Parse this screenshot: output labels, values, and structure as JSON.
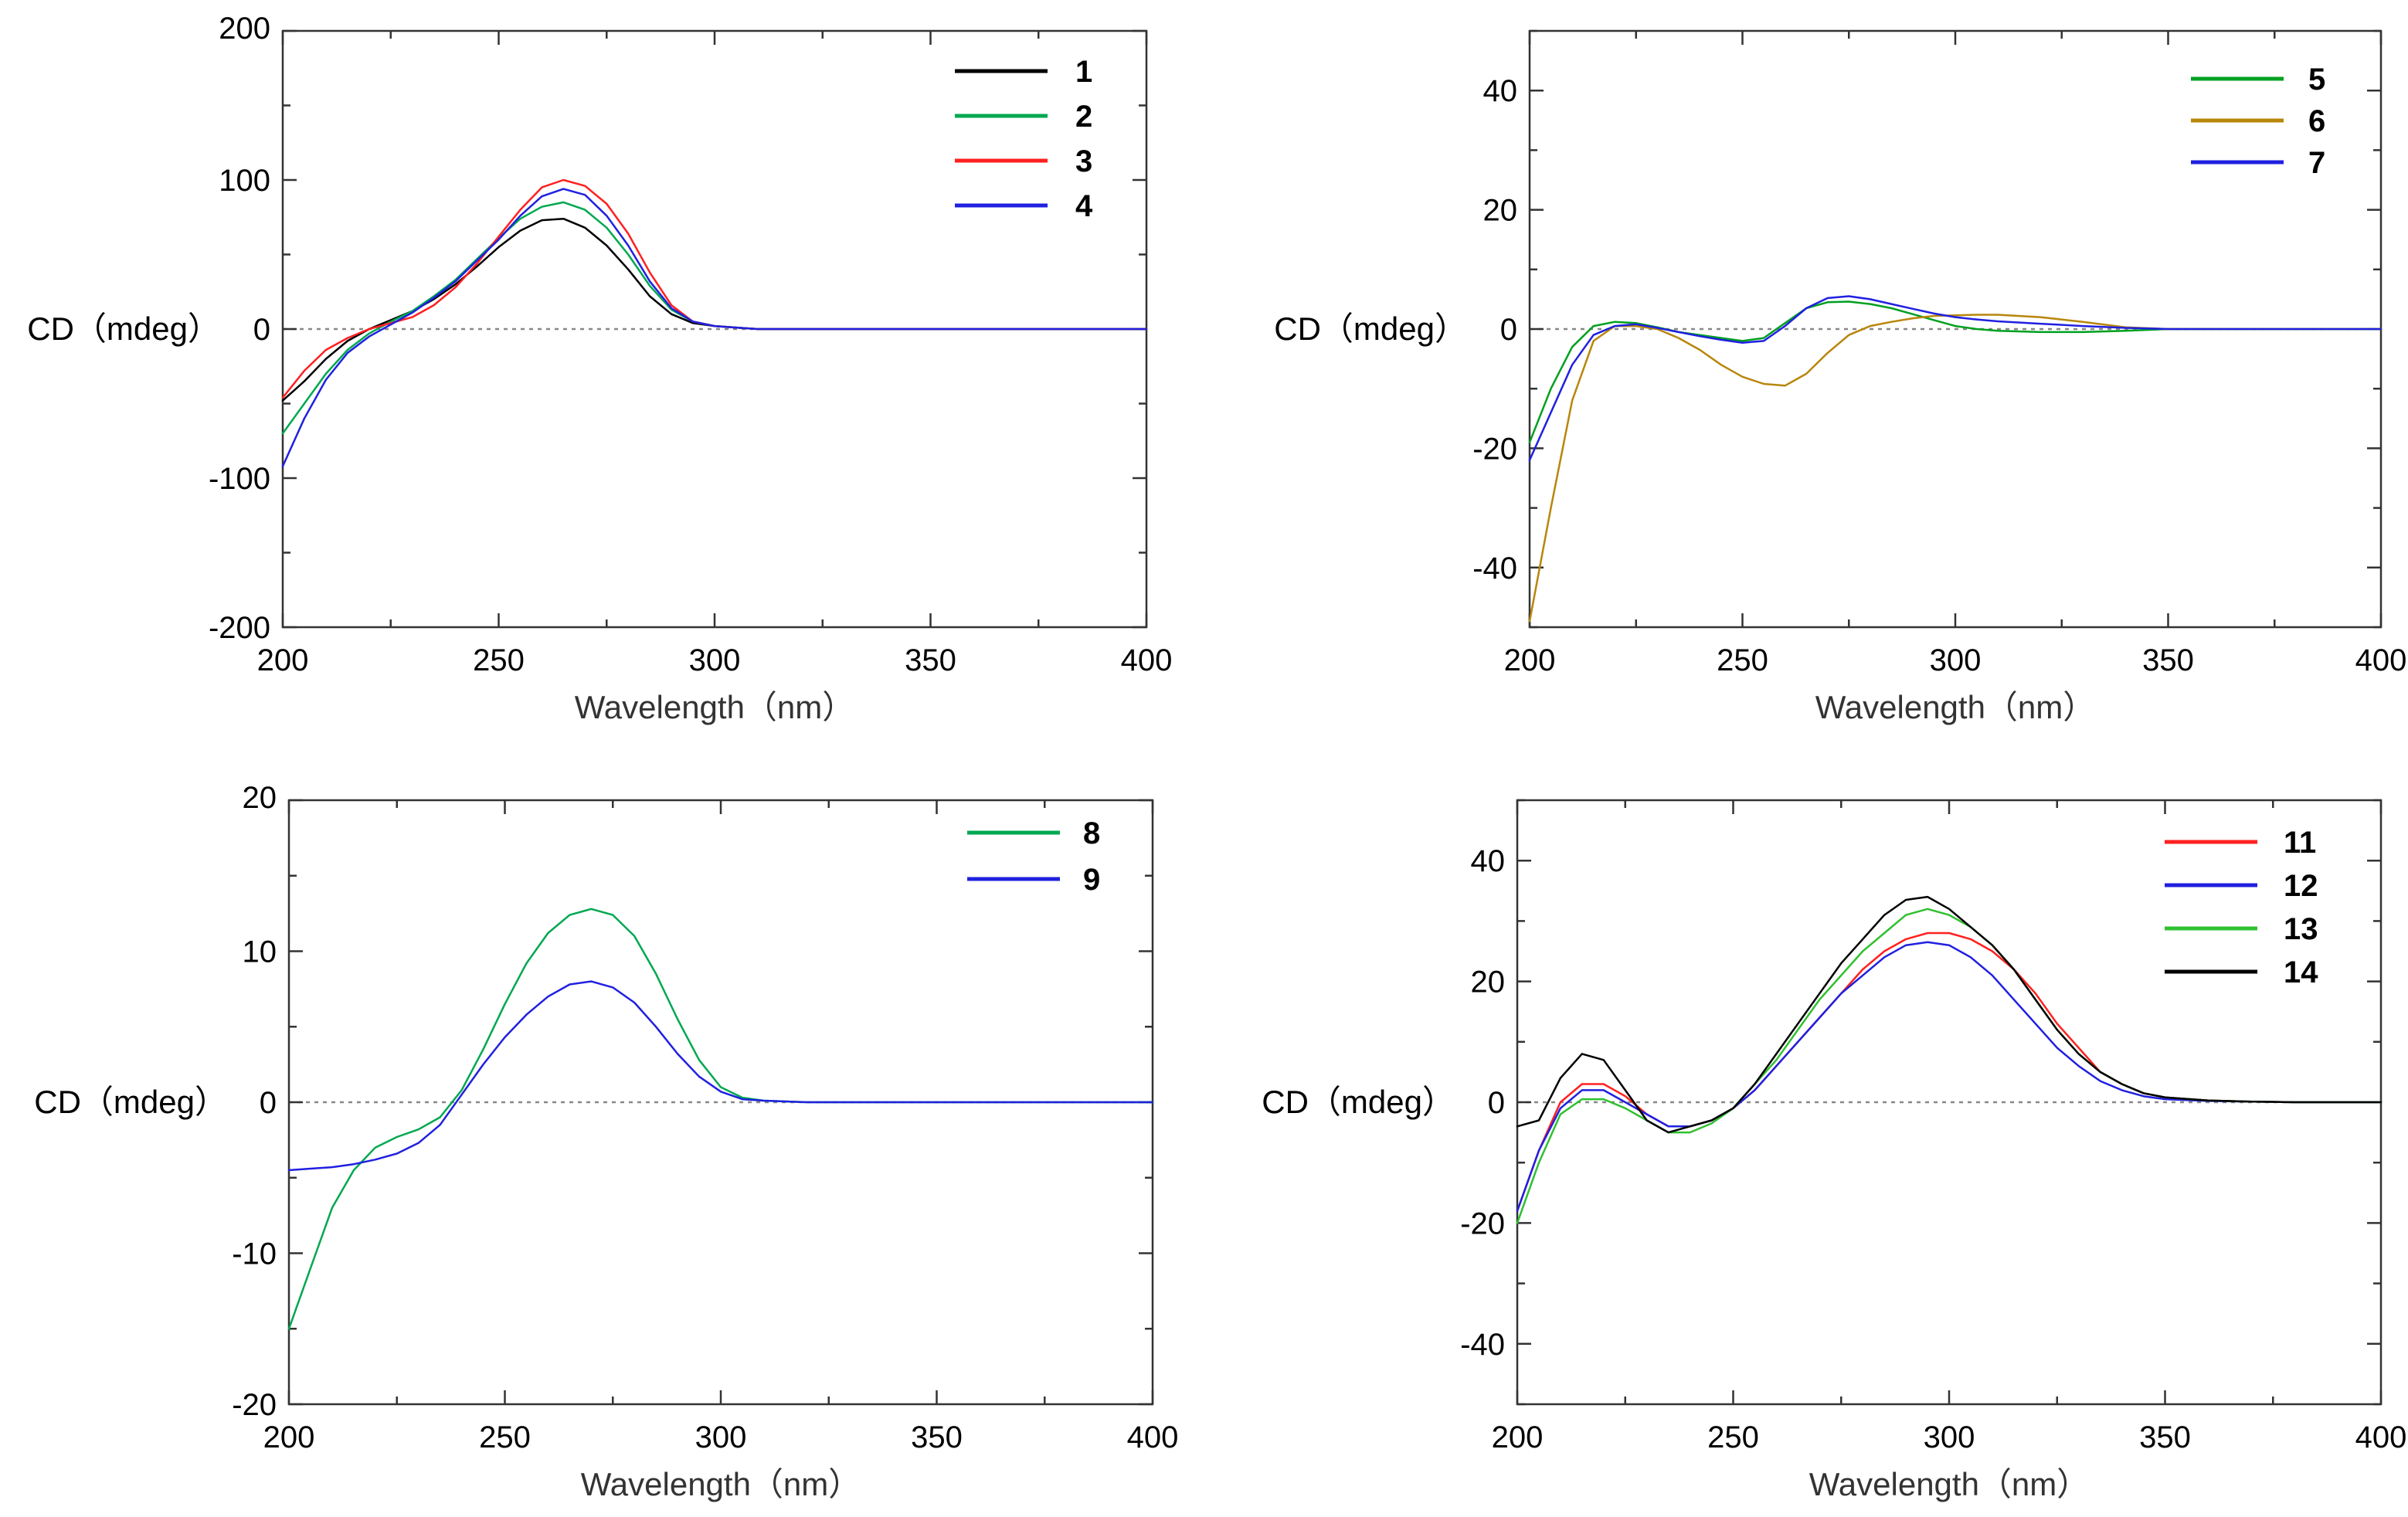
{
  "chart_data": [
    {
      "type": "line",
      "panel": "top-left",
      "xlabel": "Wavelength（nm）",
      "ylabel": "CD（mdeg）",
      "xlim": [
        200,
        400
      ],
      "ylim": [
        -200,
        200
      ],
      "xticks": [
        200,
        250,
        300,
        350,
        400
      ],
      "yticks": [
        -200,
        -100,
        0,
        100,
        200
      ],
      "zero_line": true,
      "legend_position": "top-right",
      "series": [
        {
          "name": "1",
          "color": "#000000",
          "x": [
            200,
            205,
            210,
            215,
            220,
            225,
            230,
            235,
            240,
            245,
            250,
            255,
            260,
            265,
            270,
            275,
            280,
            285,
            290,
            295,
            300,
            305,
            310,
            320,
            330,
            340,
            350,
            360,
            370,
            380,
            390,
            400
          ],
          "y": [
            -48,
            -35,
            -20,
            -8,
            0,
            6,
            12,
            20,
            30,
            42,
            55,
            66,
            73,
            74,
            68,
            56,
            40,
            22,
            10,
            4,
            2,
            1,
            0,
            0,
            0,
            0,
            0,
            0,
            0,
            0,
            0,
            0
          ]
        },
        {
          "name": "2",
          "color": "#00a850",
          "x": [
            200,
            205,
            210,
            215,
            220,
            225,
            230,
            235,
            240,
            245,
            250,
            255,
            260,
            265,
            270,
            275,
            280,
            285,
            290,
            295,
            300,
            305,
            310,
            320,
            330,
            340,
            350,
            360,
            370,
            380,
            390,
            400
          ],
          "y": [
            -70,
            -50,
            -30,
            -14,
            -3,
            5,
            12,
            22,
            33,
            47,
            61,
            74,
            82,
            85,
            80,
            68,
            50,
            29,
            13,
            5,
            2,
            1,
            0,
            0,
            0,
            0,
            0,
            0,
            0,
            0,
            0,
            0
          ]
        },
        {
          "name": "3",
          "color": "#ff2020",
          "x": [
            200,
            205,
            210,
            215,
            220,
            225,
            230,
            235,
            240,
            245,
            250,
            255,
            260,
            265,
            270,
            275,
            280,
            285,
            290,
            295,
            300,
            305,
            310,
            320,
            330,
            340,
            350,
            360,
            370,
            380,
            390,
            400
          ],
          "y": [
            -46,
            -28,
            -14,
            -6,
            0,
            4,
            8,
            16,
            28,
            44,
            62,
            80,
            95,
            100,
            96,
            84,
            64,
            38,
            16,
            5,
            2,
            1,
            0,
            0,
            0,
            0,
            0,
            0,
            0,
            0,
            0,
            0
          ]
        },
        {
          "name": "4",
          "color": "#2020e0",
          "x": [
            200,
            205,
            210,
            215,
            220,
            225,
            230,
            235,
            240,
            245,
            250,
            255,
            260,
            265,
            270,
            275,
            280,
            285,
            290,
            295,
            300,
            305,
            310,
            320,
            330,
            340,
            350,
            360,
            370,
            380,
            390,
            400
          ],
          "y": [
            -92,
            -60,
            -34,
            -16,
            -5,
            3,
            11,
            21,
            32,
            46,
            60,
            76,
            89,
            94,
            90,
            76,
            56,
            32,
            14,
            5,
            2,
            1,
            0,
            0,
            0,
            0,
            0,
            0,
            0,
            0,
            0,
            0
          ]
        }
      ]
    },
    {
      "type": "line",
      "panel": "top-right",
      "xlabel": "Wavelength（nm）",
      "ylabel": "CD（mdeg）",
      "xlim": [
        200,
        400
      ],
      "ylim": [
        -50,
        50
      ],
      "xticks": [
        200,
        250,
        300,
        350,
        400
      ],
      "yticks": [
        -40,
        -20,
        0,
        20,
        40
      ],
      "zero_line": true,
      "legend_position": "top-right",
      "series": [
        {
          "name": "5",
          "color": "#00a020",
          "x": [
            200,
            205,
            210,
            215,
            220,
            225,
            230,
            235,
            240,
            245,
            250,
            255,
            260,
            265,
            270,
            275,
            280,
            285,
            290,
            295,
            300,
            305,
            310,
            320,
            330,
            340,
            350,
            360,
            370,
            380,
            390,
            400
          ],
          "y": [
            -19,
            -10,
            -3,
            0.5,
            1.2,
            1.0,
            0.3,
            -0.5,
            -1.0,
            -1.5,
            -2.0,
            -1.5,
            1.0,
            3.5,
            4.5,
            4.6,
            4.2,
            3.5,
            2.5,
            1.5,
            0.5,
            0,
            -0.3,
            -0.5,
            -0.5,
            -0.3,
            0,
            0,
            0,
            0,
            0,
            0
          ]
        },
        {
          "name": "6",
          "color": "#b8860b",
          "x": [
            200,
            205,
            210,
            215,
            220,
            225,
            230,
            235,
            240,
            245,
            250,
            255,
            260,
            265,
            270,
            275,
            280,
            285,
            290,
            295,
            300,
            305,
            310,
            320,
            330,
            340,
            350,
            360,
            370,
            380,
            390,
            400
          ],
          "y": [
            -49,
            -30,
            -12,
            -2,
            0.5,
            0.5,
            0,
            -1.5,
            -3.5,
            -6,
            -8,
            -9.2,
            -9.5,
            -7.5,
            -4,
            -1,
            0.5,
            1.2,
            1.8,
            2.2,
            2.3,
            2.4,
            2.4,
            2,
            1.2,
            0.3,
            0,
            0,
            0,
            0,
            0,
            0
          ]
        },
        {
          "name": "7",
          "color": "#2020e0",
          "x": [
            200,
            205,
            210,
            215,
            220,
            225,
            230,
            235,
            240,
            245,
            250,
            255,
            260,
            265,
            270,
            275,
            280,
            285,
            290,
            295,
            300,
            305,
            310,
            320,
            330,
            340,
            350,
            360,
            370,
            380,
            390,
            400
          ],
          "y": [
            -22,
            -14,
            -6,
            -1,
            0.5,
            0.8,
            0.2,
            -0.5,
            -1.2,
            -1.8,
            -2.3,
            -2.0,
            0.5,
            3.5,
            5.2,
            5.5,
            5.0,
            4.2,
            3.4,
            2.6,
            2.0,
            1.6,
            1.3,
            0.9,
            0.5,
            0.2,
            0,
            0,
            0,
            0,
            0,
            0
          ]
        }
      ]
    },
    {
      "type": "line",
      "panel": "bottom-left",
      "xlabel": "Wavelength（nm）",
      "ylabel": "CD（mdeg）",
      "xlim": [
        200,
        400
      ],
      "ylim": [
        -20,
        20
      ],
      "xticks": [
        200,
        250,
        300,
        350,
        400
      ],
      "yticks": [
        -20,
        -10,
        0,
        10,
        20
      ],
      "zero_line": true,
      "legend_position": "top-right",
      "series": [
        {
          "name": "8",
          "color": "#00a850",
          "x": [
            200,
            205,
            210,
            215,
            220,
            225,
            230,
            235,
            240,
            245,
            250,
            255,
            260,
            265,
            270,
            275,
            280,
            285,
            290,
            295,
            300,
            305,
            310,
            320,
            330,
            340,
            350,
            360,
            370,
            380,
            390,
            400
          ],
          "y": [
            -15,
            -11,
            -7,
            -4.5,
            -3,
            -2.3,
            -1.8,
            -1,
            0.8,
            3.5,
            6.5,
            9.2,
            11.2,
            12.4,
            12.8,
            12.4,
            11,
            8.5,
            5.5,
            2.8,
            1,
            0.3,
            0.1,
            0,
            0,
            0,
            0,
            0,
            0,
            0,
            0,
            0
          ]
        },
        {
          "name": "9",
          "color": "#2020e0",
          "x": [
            200,
            205,
            210,
            215,
            220,
            225,
            230,
            235,
            240,
            245,
            250,
            255,
            260,
            265,
            270,
            275,
            280,
            285,
            290,
            295,
            300,
            305,
            310,
            320,
            330,
            340,
            350,
            360,
            370,
            380,
            390,
            400
          ],
          "y": [
            -4.5,
            -4.4,
            -4.3,
            -4.1,
            -3.8,
            -3.4,
            -2.7,
            -1.5,
            0.5,
            2.5,
            4.3,
            5.8,
            7.0,
            7.8,
            8.0,
            7.6,
            6.6,
            5.0,
            3.2,
            1.7,
            0.7,
            0.2,
            0.1,
            0,
            0,
            0,
            0,
            0,
            0,
            0,
            0,
            0
          ]
        }
      ]
    },
    {
      "type": "line",
      "panel": "bottom-right",
      "xlabel": "Wavelength（nm）",
      "ylabel": "CD（mdeg）",
      "xlim": [
        200,
        400
      ],
      "ylim": [
        -50,
        50
      ],
      "xticks": [
        200,
        250,
        300,
        350,
        400
      ],
      "yticks": [
        -40,
        -20,
        0,
        20,
        40
      ],
      "zero_line": true,
      "legend_position": "top-right",
      "series": [
        {
          "name": "11",
          "color": "#ff2020",
          "x": [
            200,
            205,
            210,
            215,
            220,
            225,
            230,
            235,
            240,
            245,
            250,
            255,
            260,
            265,
            270,
            275,
            280,
            285,
            290,
            295,
            300,
            305,
            310,
            315,
            320,
            325,
            330,
            335,
            340,
            345,
            350,
            360,
            370,
            380,
            390,
            400
          ],
          "y": [
            -18,
            -8,
            0,
            3,
            3,
            1,
            -2,
            -4,
            -4,
            -3,
            -1,
            2,
            6,
            10,
            14,
            18,
            22,
            25,
            27,
            28,
            28,
            27,
            25,
            22,
            18,
            13,
            9,
            5,
            3,
            1.5,
            0.8,
            0.3,
            0.1,
            0,
            0,
            0
          ]
        },
        {
          "name": "12",
          "color": "#2020e0",
          "x": [
            200,
            205,
            210,
            215,
            220,
            225,
            230,
            235,
            240,
            245,
            250,
            255,
            260,
            265,
            270,
            275,
            280,
            285,
            290,
            295,
            300,
            305,
            310,
            315,
            320,
            325,
            330,
            335,
            340,
            345,
            350,
            360,
            370,
            380,
            390,
            400
          ],
          "y": [
            -18,
            -8,
            -1,
            2,
            2,
            0,
            -2,
            -4,
            -4,
            -3,
            -1,
            2,
            6,
            10,
            14,
            18,
            21,
            24,
            26,
            26.5,
            26,
            24,
            21,
            17,
            13,
            9,
            6,
            3.5,
            2,
            1,
            0.5,
            0.2,
            0.1,
            0,
            0,
            0
          ]
        },
        {
          "name": "13",
          "color": "#30c030",
          "x": [
            200,
            205,
            210,
            215,
            220,
            225,
            230,
            235,
            240,
            245,
            250,
            255,
            260,
            265,
            270,
            275,
            280,
            285,
            290,
            295,
            300,
            305,
            310,
            315,
            320,
            325,
            330,
            335,
            340,
            345,
            350,
            360,
            370,
            380,
            390,
            400
          ],
          "y": [
            -20,
            -10,
            -2,
            0.5,
            0.5,
            -1,
            -3,
            -5,
            -5,
            -3.5,
            -1,
            3,
            7,
            12,
            17,
            21,
            25,
            28,
            31,
            32,
            31,
            29,
            26,
            22,
            17,
            12,
            8,
            5,
            3,
            1.5,
            0.8,
            0.3,
            0.1,
            0,
            0,
            0
          ]
        },
        {
          "name": "14",
          "color": "#000000",
          "x": [
            200,
            205,
            210,
            215,
            220,
            225,
            230,
            235,
            240,
            245,
            250,
            255,
            260,
            265,
            270,
            275,
            280,
            285,
            290,
            295,
            300,
            305,
            310,
            315,
            320,
            325,
            330,
            335,
            340,
            345,
            350,
            360,
            370,
            380,
            390,
            400
          ],
          "y": [
            -4,
            -3,
            4,
            8,
            7,
            2,
            -3,
            -5,
            -4,
            -3,
            -1,
            3,
            8,
            13,
            18,
            23,
            27,
            31,
            33.5,
            34,
            32,
            29,
            26,
            22,
            17,
            12,
            8,
            5,
            3,
            1.5,
            0.8,
            0.3,
            0.1,
            0,
            0,
            0
          ]
        }
      ]
    }
  ]
}
